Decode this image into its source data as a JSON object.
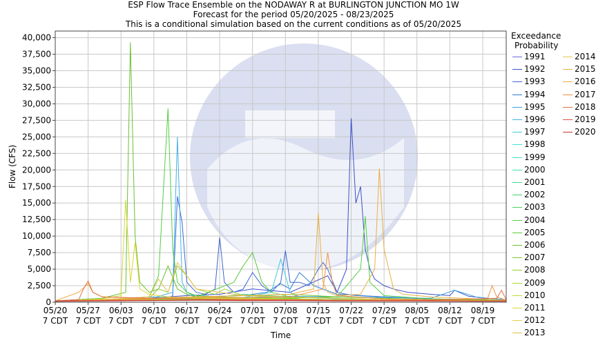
{
  "chart_data": {
    "type": "line",
    "title_lines": [
      "ESP Flow Trace Ensemble on the NODAWAY R at BURLINGTON JUNCTION MO 1W",
      "Forecast for the period 05/20/2025 - 08/23/2025",
      "This is a conditional simulation based on the current conditions as of 05/20/2025"
    ],
    "xlabel": "Time",
    "ylabel": "Flow (CFS)",
    "ylim": [
      0,
      41000
    ],
    "xlim_days": [
      0,
      96
    ],
    "grid": true,
    "legend_position": "right",
    "legend_title_lines": [
      "Exceedance",
      "Probability"
    ],
    "y_ticks": [
      {
        "value": 0,
        "label": "0"
      },
      {
        "value": 2500,
        "label": "2,500"
      },
      {
        "value": 5000,
        "label": "5,000"
      },
      {
        "value": 7500,
        "label": "7,500"
      },
      {
        "value": 10000,
        "label": "10,000"
      },
      {
        "value": 12500,
        "label": "12,500"
      },
      {
        "value": 15000,
        "label": "15,000"
      },
      {
        "value": 17500,
        "label": "17,500"
      },
      {
        "value": 20000,
        "label": "20,000"
      },
      {
        "value": 22500,
        "label": "22,500"
      },
      {
        "value": 25000,
        "label": "25,000"
      },
      {
        "value": 27500,
        "label": "27,500"
      },
      {
        "value": 30000,
        "label": "30,000"
      },
      {
        "value": 32500,
        "label": "32,500"
      },
      {
        "value": 35000,
        "label": "35,000"
      },
      {
        "value": 37500,
        "label": "37,500"
      },
      {
        "value": 40000,
        "label": "40,000"
      }
    ],
    "x_ticks": [
      {
        "day": 0,
        "line1": "05/20",
        "line2": "7 CDT"
      },
      {
        "day": 7,
        "line1": "05/27",
        "line2": "7 CDT"
      },
      {
        "day": 14,
        "line1": "06/03",
        "line2": "7 CDT"
      },
      {
        "day": 21,
        "line1": "06/10",
        "line2": "7 CDT"
      },
      {
        "day": 28,
        "line1": "06/17",
        "line2": "7 CDT"
      },
      {
        "day": 35,
        "line1": "06/24",
        "line2": "7 CDT"
      },
      {
        "day": 42,
        "line1": "07/01",
        "line2": "7 CDT"
      },
      {
        "day": 49,
        "line1": "07/08",
        "line2": "7 CDT"
      },
      {
        "day": 56,
        "line1": "07/15",
        "line2": "7 CDT"
      },
      {
        "day": 63,
        "line1": "07/22",
        "line2": "7 CDT"
      },
      {
        "day": 70,
        "line1": "07/29",
        "line2": "7 CDT"
      },
      {
        "day": 77,
        "line1": "08/05",
        "line2": "7 CDT"
      },
      {
        "day": 84,
        "line1": "08/12",
        "line2": "7 CDT"
      },
      {
        "day": 91,
        "line1": "08/19",
        "line2": "7 CDT"
      }
    ],
    "series": [
      {
        "name": "1991",
        "color": "#6a6ad8",
        "x": [
          0,
          10,
          20,
          30,
          40,
          50,
          60,
          70,
          80,
          90,
          96
        ],
        "y": [
          200,
          300,
          250,
          400,
          300,
          500,
          400,
          300,
          300,
          200,
          200
        ]
      },
      {
        "name": "1992",
        "color": "#3a4fc8",
        "x": [
          0,
          20,
          28,
          35,
          42,
          50,
          58,
          60,
          62,
          63,
          64,
          65,
          66,
          67,
          68,
          70,
          72,
          75,
          80,
          84,
          85,
          88,
          92,
          96
        ],
        "y": [
          200,
          600,
          1000,
          1200,
          2000,
          1500,
          4000,
          1500,
          5000,
          27800,
          15000,
          17500,
          8000,
          5000,
          3500,
          2500,
          2000,
          1500,
          1200,
          1000,
          1800,
          900,
          600,
          400
        ]
      },
      {
        "name": "1993",
        "color": "#3c64d4",
        "x": [
          0,
          24,
          25,
          26,
          27,
          28,
          30,
          32,
          34,
          35,
          36,
          38,
          40,
          42,
          44,
          46,
          48,
          49,
          50,
          52,
          54,
          56,
          57,
          58,
          60,
          62,
          64,
          70,
          80,
          96
        ],
        "y": [
          200,
          500,
          1000,
          16000,
          12000,
          3000,
          1500,
          1200,
          2000,
          9800,
          3000,
          1500,
          2000,
          4500,
          2500,
          1500,
          3000,
          7800,
          3000,
          3000,
          2500,
          5000,
          6000,
          5000,
          1500,
          1200,
          1000,
          800,
          500,
          300
        ]
      },
      {
        "name": "1994",
        "color": "#2c7cd0",
        "x": [
          0,
          15,
          20,
          30,
          40,
          45,
          48,
          50,
          52,
          55,
          60,
          70,
          80,
          96
        ],
        "y": [
          200,
          400,
          600,
          800,
          1000,
          1500,
          2800,
          2000,
          4500,
          2500,
          1200,
          800,
          500,
          300
        ]
      },
      {
        "name": "1995",
        "color": "#3aa0e0",
        "x": [
          0,
          7,
          10,
          20,
          30,
          40,
          50,
          60,
          70,
          80,
          85,
          90,
          96
        ],
        "y": [
          200,
          500,
          300,
          800,
          600,
          700,
          900,
          800,
          700,
          600,
          1800,
          700,
          400
        ]
      },
      {
        "name": "1996",
        "color": "#40b0e8",
        "x": [
          0,
          10,
          20,
          25,
          26,
          27,
          28,
          30,
          40,
          50,
          60,
          70,
          80,
          96
        ],
        "y": [
          200,
          400,
          500,
          1500,
          25000,
          3000,
          1500,
          800,
          600,
          500,
          400,
          400,
          300,
          200
        ]
      },
      {
        "name": "1997",
        "color": "#40c8e0",
        "x": [
          0,
          10,
          20,
          30,
          40,
          46,
          48,
          50,
          52,
          60,
          70,
          80,
          96
        ],
        "y": [
          200,
          300,
          400,
          500,
          700,
          1500,
          6500,
          1500,
          800,
          500,
          400,
          300,
          200
        ]
      },
      {
        "name": "1998",
        "color": "#40e0d8",
        "x": [
          0,
          10,
          20,
          30,
          40,
          50,
          60,
          70,
          80,
          90,
          96
        ],
        "y": [
          200,
          300,
          300,
          400,
          500,
          400,
          400,
          300,
          300,
          300,
          200
        ]
      },
      {
        "name": "1999",
        "color": "#40e0c0",
        "x": [
          0,
          10,
          20,
          30,
          40,
          50,
          60,
          70,
          80,
          90,
          96
        ],
        "y": [
          150,
          250,
          300,
          350,
          400,
          350,
          300,
          300,
          250,
          250,
          200
        ]
      },
      {
        "name": "2000",
        "color": "#40d8a8",
        "x": [
          0,
          10,
          20,
          30,
          40,
          50,
          60,
          70,
          80,
          90,
          96
        ],
        "y": [
          150,
          200,
          300,
          300,
          350,
          300,
          300,
          250,
          250,
          200,
          200
        ]
      },
      {
        "name": "2001",
        "color": "#40d890",
        "x": [
          0,
          10,
          20,
          30,
          35,
          40,
          50,
          60,
          70,
          80,
          96
        ],
        "y": [
          200,
          300,
          400,
          600,
          800,
          1200,
          800,
          600,
          400,
          300,
          200
        ]
      },
      {
        "name": "2002",
        "color": "#40d070",
        "x": [
          0,
          10,
          20,
          30,
          40,
          50,
          60,
          70,
          80,
          90,
          96
        ],
        "y": [
          200,
          300,
          400,
          500,
          400,
          500,
          400,
          300,
          300,
          200,
          200
        ]
      },
      {
        "name": "2003",
        "color": "#48d060",
        "x": [
          0,
          10,
          20,
          30,
          40,
          50,
          60,
          70,
          80,
          90,
          96
        ],
        "y": [
          200,
          250,
          300,
          400,
          500,
          450,
          400,
          350,
          300,
          250,
          200
        ]
      },
      {
        "name": "2004",
        "color": "#50d040",
        "x": [
          0,
          10,
          20,
          22,
          24,
          25,
          26,
          28,
          30,
          35,
          40,
          50,
          60,
          65,
          66,
          67,
          70,
          80,
          96
        ],
        "y": [
          200,
          400,
          800,
          4000,
          29300,
          8000,
          3000,
          1500,
          1000,
          800,
          700,
          600,
          800,
          5000,
          13000,
          3000,
          1000,
          500,
          300
        ]
      },
      {
        "name": "2005",
        "color": "#58c838",
        "x": [
          0,
          10,
          20,
          30,
          38,
          40,
          42,
          44,
          46,
          50,
          60,
          70,
          80,
          96
        ],
        "y": [
          200,
          300,
          500,
          800,
          3000,
          5500,
          7500,
          3000,
          1500,
          800,
          600,
          400,
          300,
          200
        ]
      },
      {
        "name": "2006",
        "color": "#68c030",
        "x": [
          0,
          10,
          15,
          16,
          17,
          18,
          20,
          22,
          24,
          26,
          28,
          30,
          40,
          50,
          60,
          70,
          80,
          96
        ],
        "y": [
          200,
          600,
          1500,
          39300,
          10000,
          3000,
          1500,
          2000,
          5500,
          2000,
          1200,
          800,
          600,
          500,
          400,
          300,
          300,
          200
        ]
      },
      {
        "name": "2007",
        "color": "#78c830",
        "x": [
          0,
          10,
          20,
          30,
          40,
          50,
          60,
          70,
          80,
          90,
          96
        ],
        "y": [
          200,
          400,
          600,
          800,
          1000,
          1200,
          800,
          600,
          400,
          300,
          200
        ]
      },
      {
        "name": "2008",
        "color": "#90d030",
        "x": [
          0,
          10,
          20,
          22,
          24,
          26,
          28,
          30,
          34,
          36,
          40,
          50,
          60,
          70,
          80,
          96
        ],
        "y": [
          200,
          400,
          600,
          2000,
          1500,
          5500,
          4000,
          2000,
          1200,
          2000,
          1000,
          700,
          600,
          400,
          300,
          200
        ]
      },
      {
        "name": "2009",
        "color": "#a8d830",
        "x": [
          0,
          10,
          20,
          30,
          40,
          50,
          60,
          70,
          80,
          90,
          96
        ],
        "y": [
          200,
          300,
          500,
          700,
          600,
          500,
          400,
          300,
          300,
          200,
          200
        ]
      },
      {
        "name": "2010",
        "color": "#c0d830",
        "x": [
          0,
          10,
          20,
          30,
          40,
          50,
          60,
          70,
          80,
          90,
          96
        ],
        "y": [
          200,
          300,
          400,
          500,
          600,
          500,
          400,
          400,
          300,
          300,
          200
        ]
      },
      {
        "name": "2011",
        "color": "#d8d830",
        "x": [
          0,
          10,
          14,
          15,
          16,
          17,
          18,
          20,
          24,
          30,
          40,
          50,
          60,
          70,
          80,
          96
        ],
        "y": [
          200,
          500,
          1000,
          15500,
          3000,
          9000,
          2000,
          1200,
          800,
          600,
          500,
          400,
          400,
          300,
          300,
          200
        ]
      },
      {
        "name": "2012",
        "color": "#e0d040",
        "x": [
          0,
          10,
          20,
          30,
          40,
          50,
          60,
          70,
          80,
          90,
          96
        ],
        "y": [
          150,
          250,
          300,
          300,
          250,
          300,
          250,
          200,
          200,
          200,
          150
        ]
      },
      {
        "name": "2013",
        "color": "#e0c040",
        "x": [
          0,
          10,
          20,
          30,
          40,
          50,
          60,
          70,
          80,
          90,
          96
        ],
        "y": [
          200,
          300,
          600,
          800,
          500,
          400,
          300,
          300,
          200,
          200,
          200
        ]
      },
      {
        "name": "2014",
        "color": "#e8c050",
        "x": [
          0,
          10,
          20,
          22,
          24,
          26,
          30,
          40,
          50,
          60,
          70,
          80,
          96
        ],
        "y": [
          200,
          400,
          800,
          3500,
          1500,
          6000,
          2000,
          1000,
          800,
          600,
          400,
          300,
          200
        ]
      },
      {
        "name": "2015",
        "color": "#e8b040",
        "x": [
          0,
          10,
          20,
          30,
          40,
          50,
          55,
          56,
          57,
          58,
          60,
          65,
          68,
          69,
          70,
          72,
          74,
          80,
          90,
          96
        ],
        "y": [
          200,
          400,
          600,
          800,
          1000,
          1200,
          2000,
          13500,
          3000,
          1500,
          1000,
          1200,
          5000,
          20200,
          8000,
          2000,
          1200,
          800,
          500,
          300
        ]
      },
      {
        "name": "2016",
        "color": "#f0a840",
        "x": [
          0,
          5,
          7,
          8,
          10,
          20,
          30,
          40,
          50,
          60,
          70,
          80,
          96
        ],
        "y": [
          200,
          1500,
          2800,
          1500,
          800,
          600,
          500,
          400,
          400,
          300,
          300,
          200,
          200
        ]
      },
      {
        "name": "2017",
        "color": "#f09040",
        "x": [
          0,
          10,
          20,
          30,
          40,
          50,
          57,
          58,
          59,
          60,
          70,
          80,
          92,
          93,
          94,
          96
        ],
        "y": [
          200,
          300,
          500,
          800,
          700,
          800,
          2000,
          7500,
          3000,
          1000,
          500,
          400,
          500,
          2500,
          800,
          300
        ]
      },
      {
        "name": "2018",
        "color": "#e07040",
        "x": [
          0,
          5,
          6,
          7,
          8,
          10,
          20,
          30,
          40,
          50,
          60,
          70,
          80,
          94,
          95,
          96
        ],
        "y": [
          200,
          400,
          2000,
          3200,
          1500,
          800,
          600,
          500,
          400,
          400,
          300,
          300,
          300,
          600,
          1800,
          400
        ]
      },
      {
        "name": "2019",
        "color": "#d85040",
        "x": [
          0,
          10,
          20,
          30,
          40,
          50,
          60,
          70,
          80,
          90,
          96
        ],
        "y": [
          200,
          250,
          300,
          350,
          300,
          300,
          250,
          250,
          200,
          200,
          200
        ]
      },
      {
        "name": "2020",
        "color": "#c83030",
        "x": [
          0,
          10,
          20,
          30,
          40,
          50,
          60,
          70,
          80,
          90,
          96
        ],
        "y": [
          150,
          200,
          250,
          300,
          250,
          250,
          200,
          200,
          200,
          150,
          150
        ]
      }
    ]
  }
}
